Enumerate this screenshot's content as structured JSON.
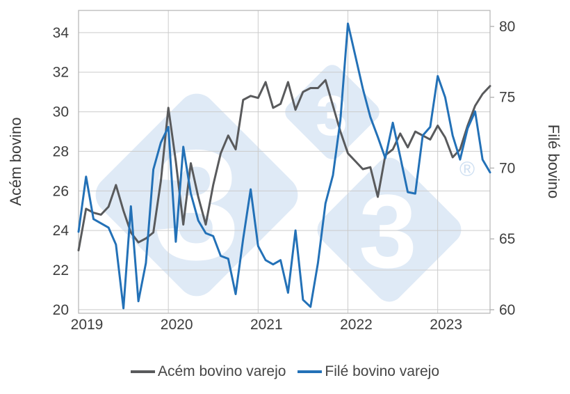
{
  "chart_data": {
    "type": "line",
    "title": "",
    "x": [
      "2019-01",
      "2019-02",
      "2019-03",
      "2019-04",
      "2019-05",
      "2019-06",
      "2019-07",
      "2019-08",
      "2019-09",
      "2019-10",
      "2019-11",
      "2019-12",
      "2020-01",
      "2020-02",
      "2020-03",
      "2020-04",
      "2020-05",
      "2020-06",
      "2020-07",
      "2020-08",
      "2020-09",
      "2020-10",
      "2020-11",
      "2020-12",
      "2021-01",
      "2021-02",
      "2021-03",
      "2021-04",
      "2021-05",
      "2021-06",
      "2021-07",
      "2021-08",
      "2021-09",
      "2021-10",
      "2021-11",
      "2021-12",
      "2022-01",
      "2022-02",
      "2022-03",
      "2022-04",
      "2022-05",
      "2022-06",
      "2022-07",
      "2022-08",
      "2022-09",
      "2022-10",
      "2022-11",
      "2022-12",
      "2023-01",
      "2023-02",
      "2023-03",
      "2023-04",
      "2023-05",
      "2023-06",
      "2023-07",
      "2023-08"
    ],
    "x_axis": {
      "tick_labels": [
        "2019",
        "2020",
        "2021",
        "2022",
        "2023"
      ],
      "tick_month_indices": [
        0,
        12,
        24,
        36,
        48
      ]
    },
    "left_axis": {
      "label": "Acém bovino",
      "ticks": [
        20,
        22,
        24,
        26,
        28,
        30,
        32,
        34
      ],
      "range": [
        19.82,
        35.12
      ]
    },
    "right_axis": {
      "label": "Filé bovino",
      "ticks": [
        60,
        65,
        70,
        75,
        80
      ],
      "range": [
        59.75,
        81.13
      ]
    },
    "series": [
      {
        "name": "Acém bovino varejo",
        "axis": "left",
        "color": "#595a5c",
        "values": [
          23.0,
          25.1,
          24.9,
          24.8,
          25.2,
          26.3,
          25.0,
          23.9,
          23.4,
          23.6,
          23.9,
          26.5,
          30.2,
          27.5,
          24.3,
          27.4,
          25.7,
          24.3,
          26.3,
          27.9,
          28.8,
          28.1,
          30.6,
          30.8,
          30.7,
          31.5,
          30.2,
          30.4,
          31.5,
          30.1,
          31.0,
          31.2,
          31.2,
          31.6,
          30.3,
          29.0,
          27.9,
          27.5,
          27.1,
          27.2,
          25.7,
          27.8,
          28.1,
          28.9,
          28.2,
          29.0,
          28.8,
          28.6,
          29.3,
          28.7,
          27.7,
          28.1,
          29.3,
          30.3,
          30.9,
          31.3
        ]
      },
      {
        "name": "Filé bovino varejo",
        "axis": "right",
        "color": "#2371b7",
        "values": [
          65.5,
          69.4,
          66.4,
          66.1,
          65.8,
          64.6,
          60.1,
          67.3,
          60.6,
          63.3,
          69.9,
          71.8,
          72.9,
          64.8,
          71.5,
          68.2,
          66.3,
          65.4,
          65.2,
          63.8,
          63.6,
          61.1,
          65.0,
          68.5,
          64.5,
          63.5,
          63.2,
          63.5,
          61.2,
          65.6,
          60.7,
          60.2,
          63.3,
          67.5,
          69.5,
          73.4,
          80.2,
          77.9,
          75.6,
          73.6,
          72.2,
          70.7,
          73.2,
          70.8,
          68.3,
          68.2,
          72.3,
          72.9,
          76.5,
          75.0,
          72.3,
          70.6,
          72.8,
          74.0,
          70.6,
          69.7
        ]
      }
    ],
    "legend_position": "bottom",
    "grid": "on"
  },
  "watermark": {
    "glyph": "3",
    "registered_mark": "®",
    "diamond_color": "#dfeaf6",
    "glyph_color": "#ffffff",
    "registered_color": "#cfe0f2"
  }
}
